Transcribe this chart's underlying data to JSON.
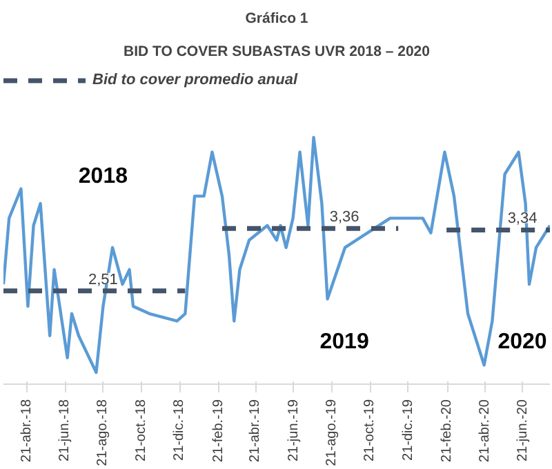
{
  "chart_data": {
    "type": "line",
    "title": "Gráfico 1",
    "subtitle": "BID TO COVER SUBASTAS UVR 2018 – 2020",
    "x": [
      "2018-03-15",
      "2018-03-24",
      "2018-04-12",
      "2018-04-23",
      "2018-05-02",
      "2018-05-13",
      "2018-05-28",
      "2018-06-04",
      "2018-06-25",
      "2018-07-02",
      "2018-07-13",
      "2018-08-10",
      "2018-08-21",
      "2018-09-05",
      "2018-09-21",
      "2018-10-02",
      "2018-10-08",
      "2018-11-03",
      "2018-12-17",
      "2018-12-30",
      "2019-01-14",
      "2019-01-29",
      "2019-02-11",
      "2019-02-27",
      "2019-03-10",
      "2019-03-18",
      "2019-03-27",
      "2019-04-11",
      "2019-05-10",
      "2019-05-25",
      "2019-05-31",
      "2019-06-09",
      "2019-06-20",
      "2019-07-01",
      "2019-07-14",
      "2019-07-23",
      "2019-08-05",
      "2019-08-14",
      "2019-09-11",
      "2019-11-22",
      "2020-01-13",
      "2020-01-26",
      "2020-02-17",
      "2020-03-03",
      "2020-03-25",
      "2020-04-20",
      "2020-05-03",
      "2020-05-23",
      "2020-06-14",
      "2020-06-25",
      "2020-07-01",
      "2020-07-12",
      "2020-08-03"
    ],
    "series": [
      {
        "color": "#5b9bd5",
        "values": [
          2.6,
          3.5,
          3.9,
          2.3,
          3.4,
          3.7,
          1.9,
          2.8,
          1.6,
          2.2,
          1.9,
          1.4,
          2.3,
          3.1,
          2.6,
          2.8,
          2.3,
          2.2,
          2.1,
          2.2,
          3.8,
          3.8,
          4.4,
          3.8,
          3.0,
          2.1,
          2.8,
          3.2,
          3.4,
          3.2,
          3.4,
          3.1,
          3.5,
          4.4,
          3.4,
          4.6,
          3.7,
          2.4,
          3.1,
          3.5,
          3.5,
          3.3,
          4.4,
          3.8,
          2.2,
          1.5,
          2.1,
          4.1,
          4.4,
          3.7,
          2.6,
          3.1,
          3.4
        ]
      },
      {
        "name": "Bid to cover promedio anual",
        "color": "#44546a",
        "line_style": "dashed",
        "x": [
          "2018-03-15",
          "2018-08-21",
          "2018-12-30",
          "2019-01-15",
          "2019-02-27",
          "2019-09-10",
          "2019-12-05",
          "2020-01-10",
          "2020-02-20",
          "2020-06-20",
          "2020-08-03"
        ],
        "values": [
          2.51,
          2.51,
          2.51,
          null,
          3.36,
          3.36,
          3.36,
          null,
          3.34,
          3.34,
          3.34
        ],
        "value_labels": [
          null,
          "2,51",
          null,
          null,
          null,
          "3,36",
          null,
          null,
          null,
          "3,34",
          null
        ]
      }
    ],
    "xlim": [
      "2018-03-15",
      "2020-08-03"
    ],
    "xticks": [
      {
        "value": "2018-04-21",
        "label": "21-abr.-18"
      },
      {
        "value": "2018-06-21",
        "label": "21-jun.-18"
      },
      {
        "value": "2018-08-21",
        "label": "21-ago.-18"
      },
      {
        "value": "2018-10-21",
        "label": "21-oct.-18"
      },
      {
        "value": "2018-12-21",
        "label": "21-dic.-18"
      },
      {
        "value": "2019-02-21",
        "label": "21-feb.-19"
      },
      {
        "value": "2019-04-21",
        "label": "21-abr.-19"
      },
      {
        "value": "2019-06-21",
        "label": "21-jun.-19"
      },
      {
        "value": "2019-08-21",
        "label": "21-ago.-19"
      },
      {
        "value": "2019-10-21",
        "label": "21-oct.-19"
      },
      {
        "value": "2019-12-21",
        "label": "21-dic.-19"
      },
      {
        "value": "2020-02-21",
        "label": "21-feb.-20"
      },
      {
        "value": "2020-04-21",
        "label": "21-abr.-20"
      },
      {
        "value": "2020-06-21",
        "label": "21-jun.-20"
      }
    ],
    "annotations": [
      "2018",
      "2019",
      "2020"
    ],
    "legend": "top left"
  }
}
